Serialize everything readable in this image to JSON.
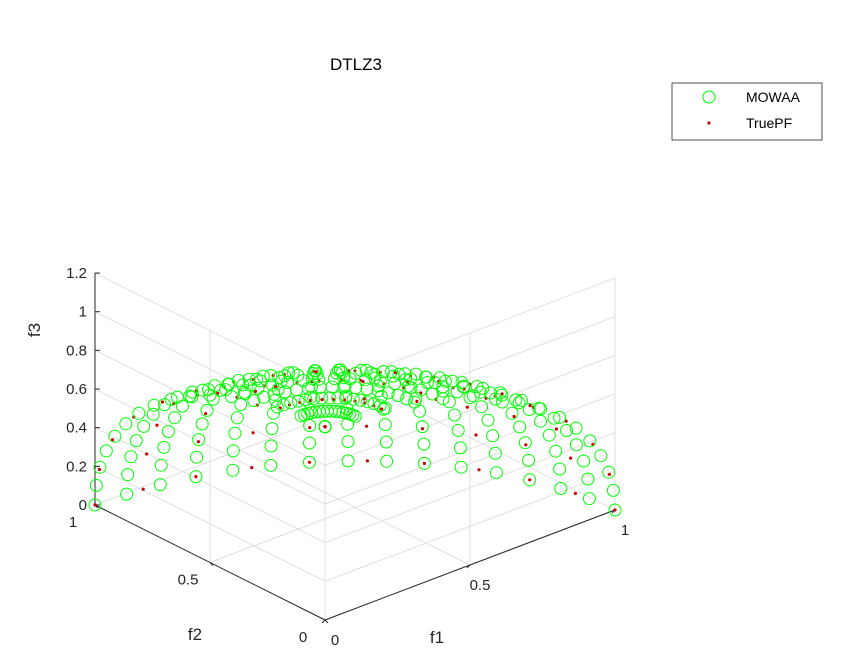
{
  "chart_data": {
    "type": "scatter3d",
    "title": "DTLZ3",
    "xlabel": "f1",
    "ylabel": "f2",
    "zlabel": "f3",
    "xlim": [
      0,
      1
    ],
    "ylim": [
      0,
      1
    ],
    "zlim": [
      0,
      1.2
    ],
    "x_ticks": [
      "0",
      "0.5",
      "1"
    ],
    "y_ticks": [
      "0",
      "0.5",
      "1"
    ],
    "z_ticks": [
      "0",
      "0.2",
      "0.4",
      "0.6",
      "0.8",
      "1",
      "1.2"
    ],
    "grid": true,
    "legend_position": "top-right",
    "series": [
      {
        "name": "MOWAA",
        "marker": "circle",
        "color": "#00ff00",
        "surface": "unit-sphere-octant",
        "n_theta": 16,
        "n_phi": 16
      },
      {
        "name": "TruePF",
        "marker": "dot",
        "color": "#cc0000",
        "surface": "unit-sphere-octant",
        "n_theta": 9,
        "n_phi": 11
      }
    ]
  }
}
